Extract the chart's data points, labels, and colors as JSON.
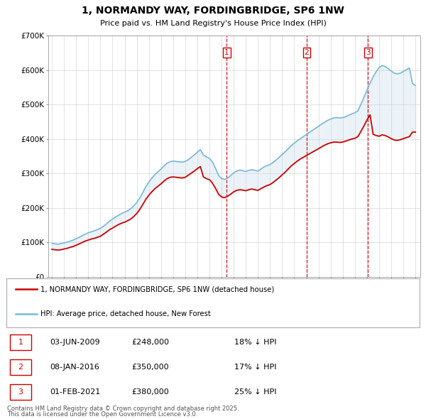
{
  "title": "1, NORMANDY WAY, FORDINGBRIDGE, SP6 1NW",
  "subtitle": "Price paid vs. HM Land Registry's House Price Index (HPI)",
  "hpi_label": "HPI: Average price, detached house, New Forest",
  "property_label": "1, NORMANDY WAY, FORDINGBRIDGE, SP6 1NW (detached house)",
  "footer": "Contains HM Land Registry data © Crown copyright and database right 2025.\nThis data is licensed under the Open Government Licence v3.0.",
  "transactions": [
    {
      "num": 1,
      "date": "03-JUN-2009",
      "price": "£248,000",
      "vs_hpi": "18% ↓ HPI"
    },
    {
      "num": 2,
      "date": "08-JAN-2016",
      "price": "£350,000",
      "vs_hpi": "17% ↓ HPI"
    },
    {
      "num": 3,
      "date": "01-FEB-2021",
      "price": "£380,000",
      "vs_hpi": "25% ↓ HPI"
    }
  ],
  "vline_dates": [
    2009.42,
    2016.02,
    2021.08
  ],
  "vline_shade": [
    2009.42,
    2016.02,
    2021.08
  ],
  "ylim": [
    0,
    700000
  ],
  "yticks": [
    0,
    100000,
    200000,
    300000,
    400000,
    500000,
    600000,
    700000
  ],
  "ytick_labels": [
    "£0",
    "£100K",
    "£200K",
    "£300K",
    "£400K",
    "£500K",
    "£600K",
    "£700K"
  ],
  "hpi_color": "#7ab8d9",
  "hpi_fill_color": "#c8dff0",
  "price_color": "#cc0000",
  "vline_color": "#cc0000",
  "bg_color": "#ffffff",
  "grid_color": "#cccccc",
  "hpi_data_years": [
    1995.0,
    1995.25,
    1995.5,
    1995.75,
    1996.0,
    1996.25,
    1996.5,
    1996.75,
    1997.0,
    1997.25,
    1997.5,
    1997.75,
    1998.0,
    1998.25,
    1998.5,
    1998.75,
    1999.0,
    1999.25,
    1999.5,
    1999.75,
    2000.0,
    2000.25,
    2000.5,
    2000.75,
    2001.0,
    2001.25,
    2001.5,
    2001.75,
    2002.0,
    2002.25,
    2002.5,
    2002.75,
    2003.0,
    2003.25,
    2003.5,
    2003.75,
    2004.0,
    2004.25,
    2004.5,
    2004.75,
    2005.0,
    2005.25,
    2005.5,
    2005.75,
    2006.0,
    2006.25,
    2006.5,
    2006.75,
    2007.0,
    2007.25,
    2007.5,
    2007.75,
    2008.0,
    2008.25,
    2008.5,
    2008.75,
    2009.0,
    2009.25,
    2009.5,
    2009.75,
    2010.0,
    2010.25,
    2010.5,
    2010.75,
    2011.0,
    2011.25,
    2011.5,
    2011.75,
    2012.0,
    2012.25,
    2012.5,
    2012.75,
    2013.0,
    2013.25,
    2013.5,
    2013.75,
    2014.0,
    2014.25,
    2014.5,
    2014.75,
    2015.0,
    2015.25,
    2015.5,
    2015.75,
    2016.0,
    2016.25,
    2016.5,
    2016.75,
    2017.0,
    2017.25,
    2017.5,
    2017.75,
    2018.0,
    2018.25,
    2018.5,
    2018.75,
    2019.0,
    2019.25,
    2019.5,
    2019.75,
    2020.0,
    2020.25,
    2020.5,
    2020.75,
    2021.0,
    2021.25,
    2021.5,
    2021.75,
    2022.0,
    2022.25,
    2022.5,
    2022.75,
    2023.0,
    2023.25,
    2023.5,
    2023.75,
    2024.0,
    2024.25,
    2024.5,
    2024.75,
    2025.0
  ],
  "hpi_data_values": [
    98000,
    96000,
    95000,
    97000,
    99000,
    101000,
    104000,
    107000,
    111000,
    115000,
    120000,
    124000,
    128000,
    131000,
    134000,
    137000,
    141000,
    147000,
    154000,
    162000,
    168000,
    174000,
    179000,
    184000,
    188000,
    192000,
    198000,
    206000,
    216000,
    229000,
    245000,
    262000,
    275000,
    287000,
    297000,
    305000,
    313000,
    322000,
    330000,
    334000,
    336000,
    335000,
    334000,
    333000,
    335000,
    340000,
    347000,
    354000,
    362000,
    369000,
    354000,
    348000,
    344000,
    333000,
    315000,
    295000,
    285000,
    283000,
    287000,
    294000,
    302000,
    307000,
    310000,
    308000,
    306000,
    309000,
    311000,
    309000,
    307000,
    313000,
    319000,
    323000,
    326000,
    332000,
    339000,
    347000,
    355000,
    363000,
    372000,
    381000,
    388000,
    395000,
    401000,
    407000,
    413000,
    419000,
    425000,
    431000,
    437000,
    443000,
    449000,
    454000,
    458000,
    461000,
    462000,
    461000,
    462000,
    465000,
    469000,
    473000,
    476000,
    482000,
    501000,
    521000,
    542000,
    562000,
    580000,
    595000,
    607000,
    613000,
    610000,
    604000,
    597000,
    591000,
    589000,
    591000,
    596000,
    601000,
    606000,
    561000,
    555000
  ],
  "price_data_years": [
    1995.0,
    1995.25,
    1995.5,
    1995.75,
    1996.0,
    1996.25,
    1996.5,
    1996.75,
    1997.0,
    1997.25,
    1997.5,
    1997.75,
    1998.0,
    1998.25,
    1998.5,
    1998.75,
    1999.0,
    1999.25,
    1999.5,
    1999.75,
    2000.0,
    2000.25,
    2000.5,
    2000.75,
    2001.0,
    2001.25,
    2001.5,
    2001.75,
    2002.0,
    2002.25,
    2002.5,
    2002.75,
    2003.0,
    2003.25,
    2003.5,
    2003.75,
    2004.0,
    2004.25,
    2004.5,
    2004.75,
    2005.0,
    2005.25,
    2005.5,
    2005.75,
    2006.0,
    2006.25,
    2006.5,
    2006.75,
    2007.0,
    2007.25,
    2007.5,
    2007.75,
    2008.0,
    2008.25,
    2008.5,
    2008.75,
    2009.0,
    2009.25,
    2009.5,
    2009.75,
    2010.0,
    2010.25,
    2010.5,
    2010.75,
    2011.0,
    2011.25,
    2011.5,
    2011.75,
    2012.0,
    2012.25,
    2012.5,
    2012.75,
    2013.0,
    2013.25,
    2013.5,
    2013.75,
    2014.0,
    2014.25,
    2014.5,
    2014.75,
    2015.0,
    2015.25,
    2015.5,
    2015.75,
    2016.0,
    2016.25,
    2016.5,
    2016.75,
    2017.0,
    2017.25,
    2017.5,
    2017.75,
    2018.0,
    2018.25,
    2018.5,
    2018.75,
    2019.0,
    2019.25,
    2019.5,
    2019.75,
    2020.0,
    2020.25,
    2020.5,
    2020.75,
    2021.0,
    2021.25,
    2021.5,
    2021.75,
    2022.0,
    2022.25,
    2022.5,
    2022.75,
    2023.0,
    2023.25,
    2023.5,
    2023.75,
    2024.0,
    2024.25,
    2024.5,
    2024.75,
    2025.0
  ],
  "price_data_values": [
    80000,
    79000,
    78000,
    79000,
    81000,
    83000,
    86000,
    88000,
    92000,
    96000,
    100000,
    104000,
    107000,
    110000,
    112000,
    115000,
    118000,
    124000,
    130000,
    137000,
    142000,
    147000,
    152000,
    156000,
    159000,
    163000,
    168000,
    175000,
    184000,
    196000,
    210000,
    225000,
    237000,
    247000,
    256000,
    263000,
    270000,
    278000,
    285000,
    289000,
    290000,
    289000,
    288000,
    287000,
    289000,
    295000,
    301000,
    307000,
    314000,
    320000,
    290000,
    285000,
    282000,
    272000,
    257000,
    240000,
    232000,
    230000,
    234000,
    240000,
    247000,
    251000,
    253000,
    252000,
    250000,
    253000,
    255000,
    253000,
    251000,
    256000,
    261000,
    265000,
    268000,
    274000,
    281000,
    288000,
    296000,
    304000,
    313000,
    322000,
    329000,
    336000,
    342000,
    347000,
    352000,
    357000,
    362000,
    367000,
    372000,
    377000,
    382000,
    386000,
    389000,
    391000,
    391000,
    390000,
    391000,
    394000,
    397000,
    400000,
    402000,
    407000,
    422000,
    438000,
    455000,
    470000,
    414000,
    410000,
    408000,
    412000,
    410000,
    406000,
    401000,
    397000,
    396000,
    398000,
    401000,
    404000,
    407000,
    420000,
    420000
  ]
}
